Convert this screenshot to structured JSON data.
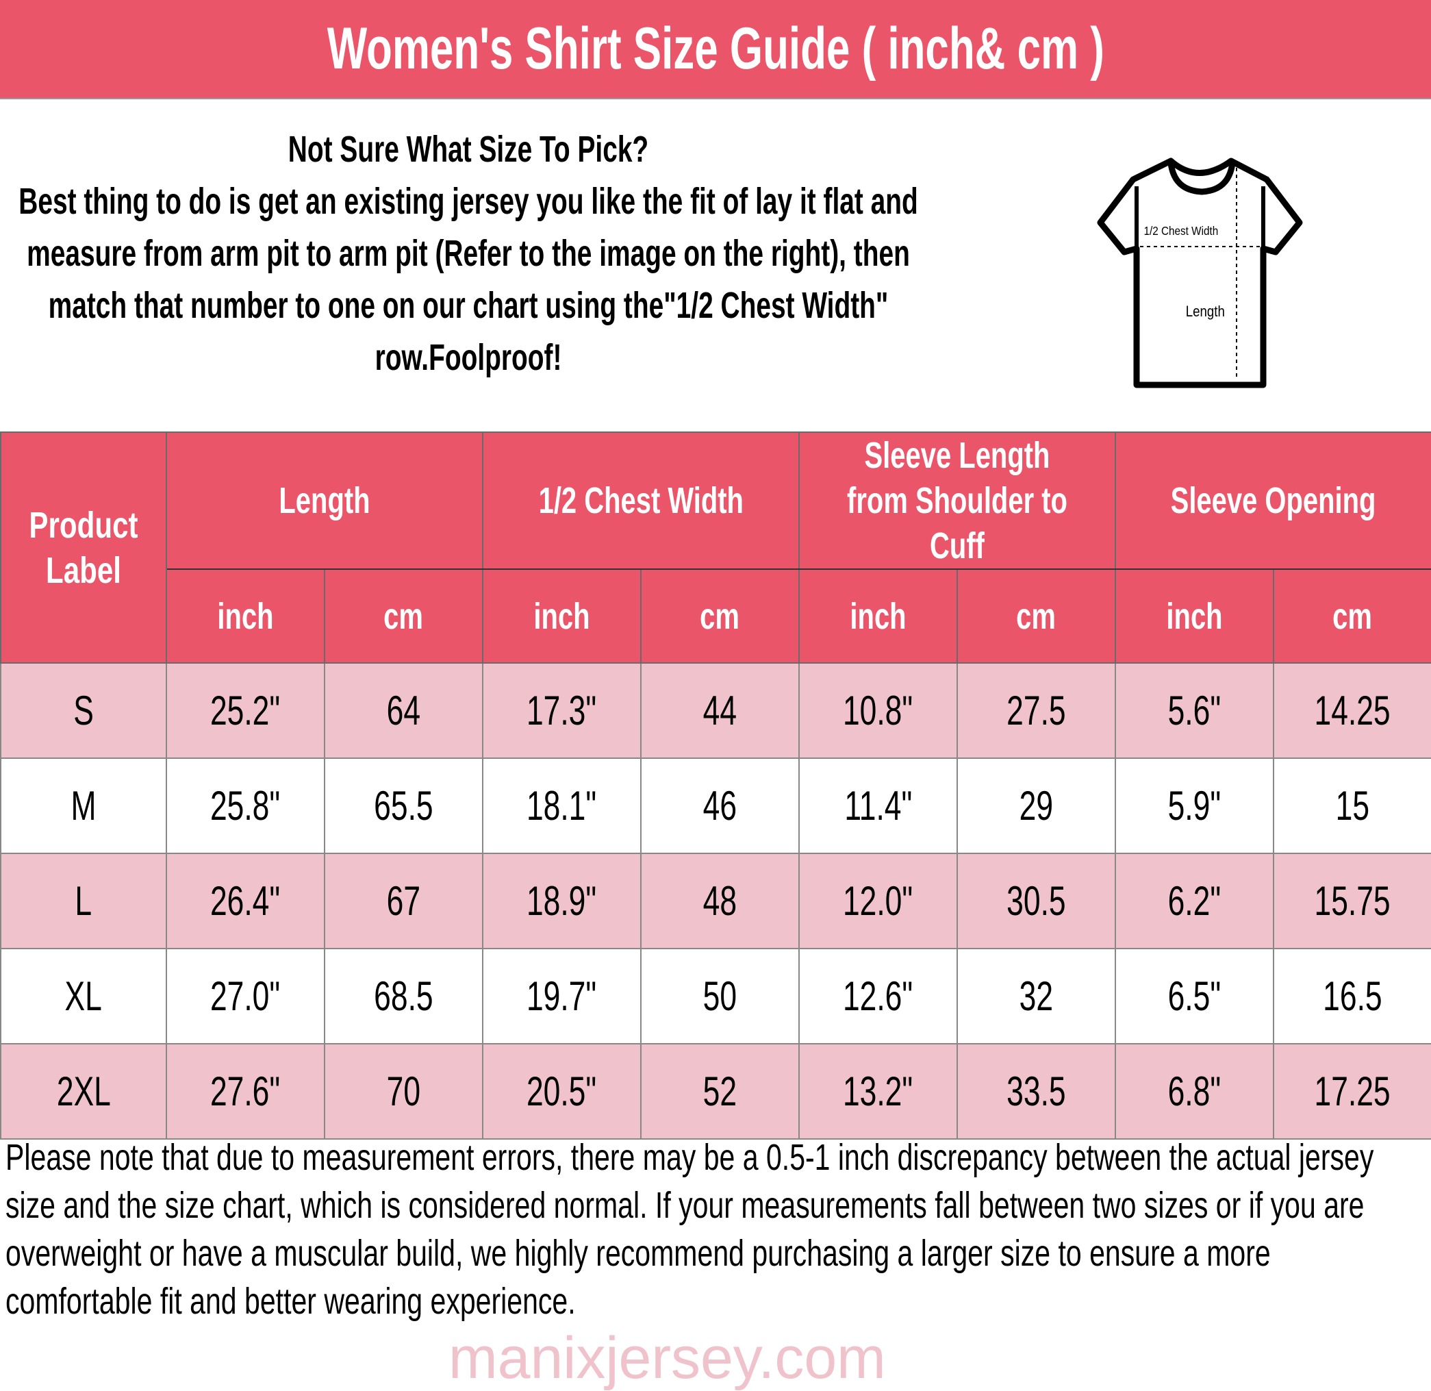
{
  "title": "Women's Shirt Size Guide ( inch& cm )",
  "intro": {
    "heading": "Not Sure What Size To Pick?",
    "body": "Best thing to do is get an existing jersey you like the fit of lay it flat and measure from arm pit to arm pit (Refer to the image on the right), then match that number to one on our chart using the\"1/2 Chest Width\" row.Foolproof!"
  },
  "diagram": {
    "chest_label": "1/2 Chest Width",
    "length_label": "Length"
  },
  "colors": {
    "header": "#eb5569",
    "odd_row": "#f0c2cb",
    "even_row": "#ffffff"
  },
  "table": {
    "label_header": "Product Label",
    "groups": [
      "Length",
      "1/2 Chest Width",
      "Sleeve Length from Shoulder to Cuff",
      "Sleeve Opening"
    ],
    "units": [
      "inch",
      "cm",
      "inch",
      "cm",
      "inch",
      "cm",
      "inch",
      "cm"
    ],
    "rows": [
      [
        "S",
        "25.2\"",
        "64",
        "17.3\"",
        "44",
        "10.8\"",
        "27.5",
        "5.6\"",
        "14.25"
      ],
      [
        "M",
        "25.8\"",
        "65.5",
        "18.1\"",
        "46",
        "11.4\"",
        "29",
        "5.9\"",
        "15"
      ],
      [
        "L",
        "26.4\"",
        "67",
        "18.9\"",
        "48",
        "12.0\"",
        "30.5",
        "6.2\"",
        "15.75"
      ],
      [
        "XL",
        "27.0\"",
        "68.5",
        "19.7\"",
        "50",
        "12.6\"",
        "32",
        "6.5\"",
        "16.5"
      ],
      [
        "2XL",
        "27.6\"",
        "70",
        "20.5\"",
        "52",
        "13.2\"",
        "33.5",
        "6.8\"",
        "17.25"
      ]
    ]
  },
  "watermark": "manixjersey.com",
  "footer": "Please note that due to measurement errors, there may be a 0.5-1 inch discrepancy between the actual jersey size and the size chart, which is considered normal. If your measurements fall between two sizes or if you are overweight or have a muscular build, we highly recommend purchasing a larger size to ensure a more comfortable fit and better wearing experience."
}
